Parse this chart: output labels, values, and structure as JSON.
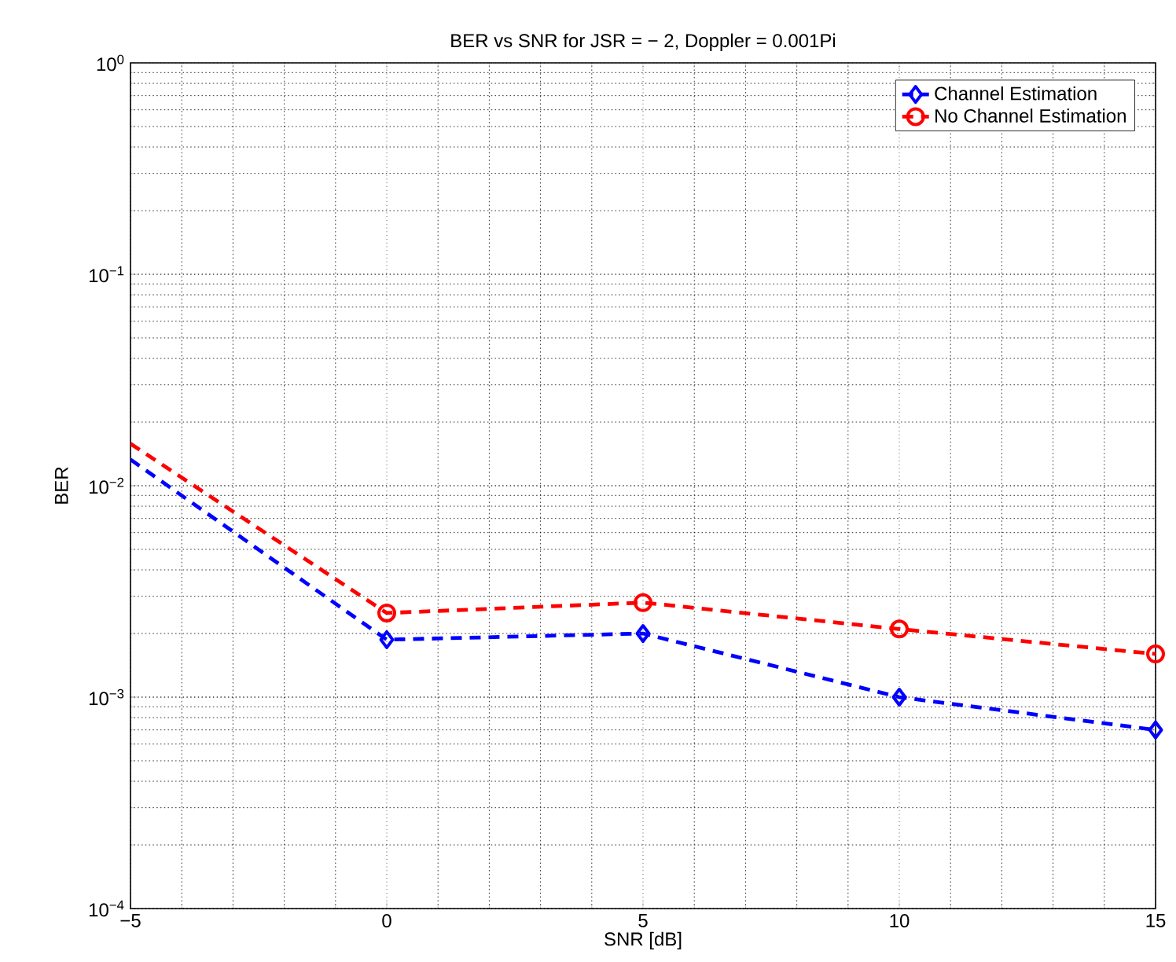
{
  "chart_data": {
    "type": "line",
    "title": "BER vs SNR for JSR = − 2, Doppler = 0.001Pi",
    "xlabel": "SNR [dB]",
    "ylabel": "BER",
    "x": [
      -5,
      0,
      5,
      10,
      15
    ],
    "series": [
      {
        "name": "Channel Estimation",
        "color": "#0000ff",
        "marker": "diamond",
        "values": [
          0.0133,
          0.00187,
          0.002,
          0.001,
          0.0007
        ]
      },
      {
        "name": "No Channel Estimation",
        "color": "#ff0000",
        "marker": "circle",
        "values": [
          0.0158,
          0.0025,
          0.0028,
          0.0021,
          0.0016
        ]
      }
    ],
    "xlim": [
      -5,
      15
    ],
    "ylim": [
      0.0001,
      1
    ],
    "xticks": [
      {
        "value": -5,
        "label": "−5"
      },
      0,
      5,
      10,
      15
    ],
    "yticks": [
      {
        "value": 0.0001,
        "label": "10$^{−4}$"
      },
      {
        "value": 0.001,
        "label": "10$^{−3}$"
      },
      {
        "value": 0.01,
        "label": "10$^{−2}$"
      },
      {
        "value": 0.1,
        "label": "10$^{−1}$"
      },
      {
        "value": 1,
        "label": "10$^{0}$"
      }
    ],
    "log": "y",
    "grid": true,
    "legend": "top right",
    "line_style": "dashed"
  }
}
